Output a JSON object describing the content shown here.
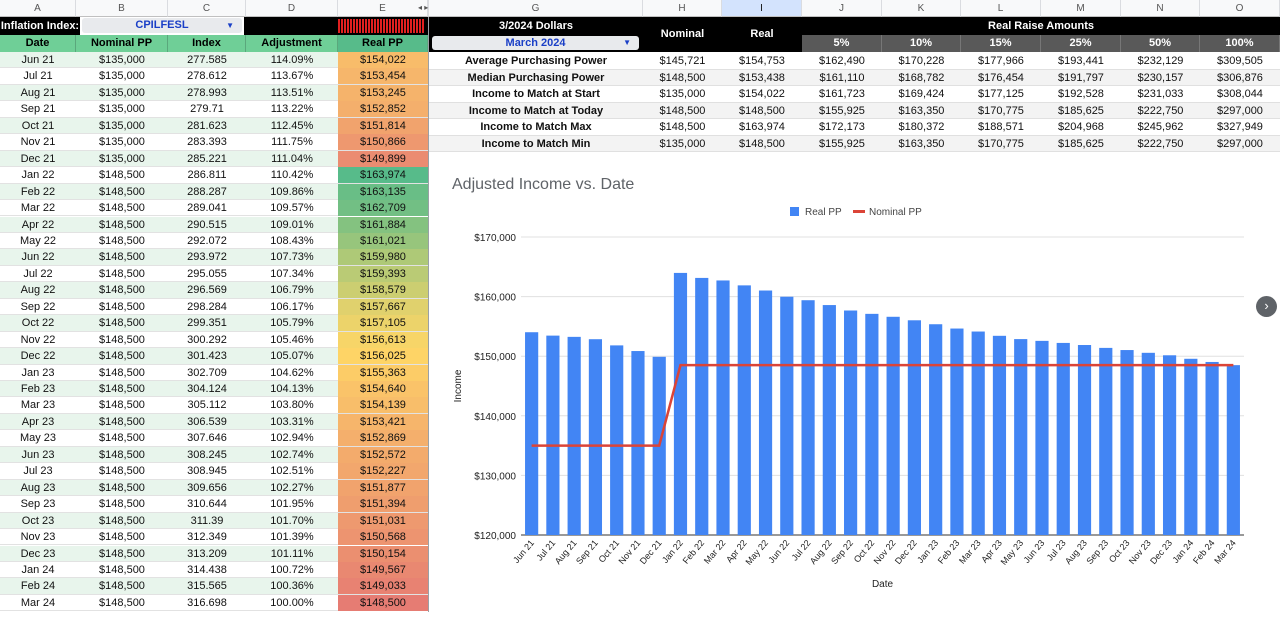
{
  "columns": [
    "A",
    "B",
    "C",
    "D",
    "E",
    "",
    "G",
    "H",
    "I",
    "J",
    "K",
    "L",
    "M",
    "N",
    "O"
  ],
  "header1": {
    "inflation_label": "Inflation Index:",
    "index_value": "CPILFESL",
    "dollars_title": "3/2024 Dollars",
    "month_value": "March 2024",
    "nominal": "Nominal",
    "real": "Real",
    "raise_title": "Real Raise Amounts"
  },
  "left_headers": [
    "Date",
    "Nominal PP",
    "Index",
    "Adjustment",
    "Real PP"
  ],
  "raise_pcts": [
    "5%",
    "10%",
    "15%",
    "25%",
    "50%",
    "100%"
  ],
  "rows": [
    {
      "date": "Jun 21",
      "nominal": "$135,000",
      "index": "277.585",
      "adj": "114.09%",
      "real": "$154,022"
    },
    {
      "date": "Jul 21",
      "nominal": "$135,000",
      "index": "278.612",
      "adj": "113.67%",
      "real": "$153,454"
    },
    {
      "date": "Aug 21",
      "nominal": "$135,000",
      "index": "278.993",
      "adj": "113.51%",
      "real": "$153,245"
    },
    {
      "date": "Sep 21",
      "nominal": "$135,000",
      "index": "279.71",
      "adj": "113.22%",
      "real": "$152,852"
    },
    {
      "date": "Oct 21",
      "nominal": "$135,000",
      "index": "281.623",
      "adj": "112.45%",
      "real": "$151,814"
    },
    {
      "date": "Nov 21",
      "nominal": "$135,000",
      "index": "283.393",
      "adj": "111.75%",
      "real": "$150,866"
    },
    {
      "date": "Dec 21",
      "nominal": "$135,000",
      "index": "285.221",
      "adj": "111.04%",
      "real": "$149,899"
    },
    {
      "date": "Jan 22",
      "nominal": "$148,500",
      "index": "286.811",
      "adj": "110.42%",
      "real": "$163,974"
    },
    {
      "date": "Feb 22",
      "nominal": "$148,500",
      "index": "288.287",
      "adj": "109.86%",
      "real": "$163,135"
    },
    {
      "date": "Mar 22",
      "nominal": "$148,500",
      "index": "289.041",
      "adj": "109.57%",
      "real": "$162,709"
    },
    {
      "date": "Apr 22",
      "nominal": "$148,500",
      "index": "290.515",
      "adj": "109.01%",
      "real": "$161,884"
    },
    {
      "date": "May 22",
      "nominal": "$148,500",
      "index": "292.072",
      "adj": "108.43%",
      "real": "$161,021"
    },
    {
      "date": "Jun 22",
      "nominal": "$148,500",
      "index": "293.972",
      "adj": "107.73%",
      "real": "$159,980"
    },
    {
      "date": "Jul 22",
      "nominal": "$148,500",
      "index": "295.055",
      "adj": "107.34%",
      "real": "$159,393"
    },
    {
      "date": "Aug 22",
      "nominal": "$148,500",
      "index": "296.569",
      "adj": "106.79%",
      "real": "$158,579"
    },
    {
      "date": "Sep 22",
      "nominal": "$148,500",
      "index": "298.284",
      "adj": "106.17%",
      "real": "$157,667"
    },
    {
      "date": "Oct 22",
      "nominal": "$148,500",
      "index": "299.351",
      "adj": "105.79%",
      "real": "$157,105"
    },
    {
      "date": "Nov 22",
      "nominal": "$148,500",
      "index": "300.292",
      "adj": "105.46%",
      "real": "$156,613"
    },
    {
      "date": "Dec 22",
      "nominal": "$148,500",
      "index": "301.423",
      "adj": "105.07%",
      "real": "$156,025"
    },
    {
      "date": "Jan 23",
      "nominal": "$148,500",
      "index": "302.709",
      "adj": "104.62%",
      "real": "$155,363"
    },
    {
      "date": "Feb 23",
      "nominal": "$148,500",
      "index": "304.124",
      "adj": "104.13%",
      "real": "$154,640"
    },
    {
      "date": "Mar 23",
      "nominal": "$148,500",
      "index": "305.112",
      "adj": "103.80%",
      "real": "$154,139"
    },
    {
      "date": "Apr 23",
      "nominal": "$148,500",
      "index": "306.539",
      "adj": "103.31%",
      "real": "$153,421"
    },
    {
      "date": "May 23",
      "nominal": "$148,500",
      "index": "307.646",
      "adj": "102.94%",
      "real": "$152,869"
    },
    {
      "date": "Jun 23",
      "nominal": "$148,500",
      "index": "308.245",
      "adj": "102.74%",
      "real": "$152,572"
    },
    {
      "date": "Jul 23",
      "nominal": "$148,500",
      "index": "308.945",
      "adj": "102.51%",
      "real": "$152,227"
    },
    {
      "date": "Aug 23",
      "nominal": "$148,500",
      "index": "309.656",
      "adj": "102.27%",
      "real": "$151,877"
    },
    {
      "date": "Sep 23",
      "nominal": "$148,500",
      "index": "310.644",
      "adj": "101.95%",
      "real": "$151,394"
    },
    {
      "date": "Oct 23",
      "nominal": "$148,500",
      "index": "311.39",
      "adj": "101.70%",
      "real": "$151,031"
    },
    {
      "date": "Nov 23",
      "nominal": "$148,500",
      "index": "312.349",
      "adj": "101.39%",
      "real": "$150,568"
    },
    {
      "date": "Dec 23",
      "nominal": "$148,500",
      "index": "313.209",
      "adj": "101.11%",
      "real": "$150,154"
    },
    {
      "date": "Jan 24",
      "nominal": "$148,500",
      "index": "314.438",
      "adj": "100.72%",
      "real": "$149,567"
    },
    {
      "date": "Feb 24",
      "nominal": "$148,500",
      "index": "315.565",
      "adj": "100.36%",
      "real": "$149,033"
    },
    {
      "date": "Mar 24",
      "nominal": "$148,500",
      "index": "316.698",
      "adj": "100.00%",
      "real": "$148,500"
    }
  ],
  "summary": [
    {
      "label": "Average Purchasing Power",
      "nominal": "$145,721",
      "real": "$154,753",
      "raises": [
        "$162,490",
        "$170,228",
        "$177,966",
        "$193,441",
        "$232,129",
        "$309,505"
      ]
    },
    {
      "label": "Median Purchasing Power",
      "nominal": "$148,500",
      "real": "$153,438",
      "raises": [
        "$161,110",
        "$168,782",
        "$176,454",
        "$191,797",
        "$230,157",
        "$306,876"
      ]
    },
    {
      "label": "Income to Match at Start",
      "nominal": "$135,000",
      "real": "$154,022",
      "raises": [
        "$161,723",
        "$169,424",
        "$177,125",
        "$192,528",
        "$231,033",
        "$308,044"
      ]
    },
    {
      "label": "Income to Match at Today",
      "nominal": "$148,500",
      "real": "$148,500",
      "raises": [
        "$155,925",
        "$163,350",
        "$170,775",
        "$185,625",
        "$222,750",
        "$297,000"
      ]
    },
    {
      "label": "Income to Match Max",
      "nominal": "$148,500",
      "real": "$163,974",
      "raises": [
        "$172,173",
        "$180,372",
        "$188,571",
        "$204,968",
        "$245,962",
        "$327,949"
      ]
    },
    {
      "label": "Income to Match Min",
      "nominal": "$135,000",
      "real": "$148,500",
      "raises": [
        "$155,925",
        "$163,350",
        "$170,775",
        "$185,625",
        "$222,750",
        "$297,000"
      ]
    }
  ],
  "colors": {
    "header_green": "#6fcf97",
    "bar_blue": "#4285f4",
    "line_red": "#db4437",
    "real_top": "#57bb8a",
    "real_mid": "#ffd666",
    "real_bot": "#e67c73"
  },
  "chart_data": {
    "type": "bar",
    "title": "Adjusted Income vs. Date",
    "xlabel": "Date",
    "ylabel": "Income",
    "ylim": [
      120000,
      170000
    ],
    "yticks": [
      "$120,000",
      "$130,000",
      "$140,000",
      "$150,000",
      "$160,000",
      "$170,000"
    ],
    "legend": "top",
    "categories": [
      "Jun 21",
      "Jul 21",
      "Aug 21",
      "Sep 21",
      "Oct 21",
      "Nov 21",
      "Dec 21",
      "Jan 22",
      "Feb 22",
      "Mar 22",
      "Apr 22",
      "May 22",
      "Jun 22",
      "Jul 22",
      "Aug 22",
      "Sep 22",
      "Oct 22",
      "Nov 22",
      "Dec 22",
      "Jan 23",
      "Feb 23",
      "Mar 23",
      "Apr 23",
      "May 23",
      "Jun 23",
      "Jul 23",
      "Aug 23",
      "Sep 23",
      "Oct 23",
      "Nov 23",
      "Dec 23",
      "Jan 24",
      "Feb 24",
      "Mar 24"
    ],
    "series": [
      {
        "name": "Real PP",
        "type": "bar",
        "values": [
          154022,
          153454,
          153245,
          152852,
          151814,
          150866,
          149899,
          163974,
          163135,
          162709,
          161884,
          161021,
          159980,
          159393,
          158579,
          157667,
          157105,
          156613,
          156025,
          155363,
          154640,
          154139,
          153421,
          152869,
          152572,
          152227,
          151877,
          151394,
          151031,
          150568,
          150154,
          149567,
          149033,
          148500
        ]
      },
      {
        "name": "Nominal PP",
        "type": "line",
        "values": [
          135000,
          135000,
          135000,
          135000,
          135000,
          135000,
          135000,
          148500,
          148500,
          148500,
          148500,
          148500,
          148500,
          148500,
          148500,
          148500,
          148500,
          148500,
          148500,
          148500,
          148500,
          148500,
          148500,
          148500,
          148500,
          148500,
          148500,
          148500,
          148500,
          148500,
          148500,
          148500,
          148500,
          148500
        ]
      }
    ]
  }
}
